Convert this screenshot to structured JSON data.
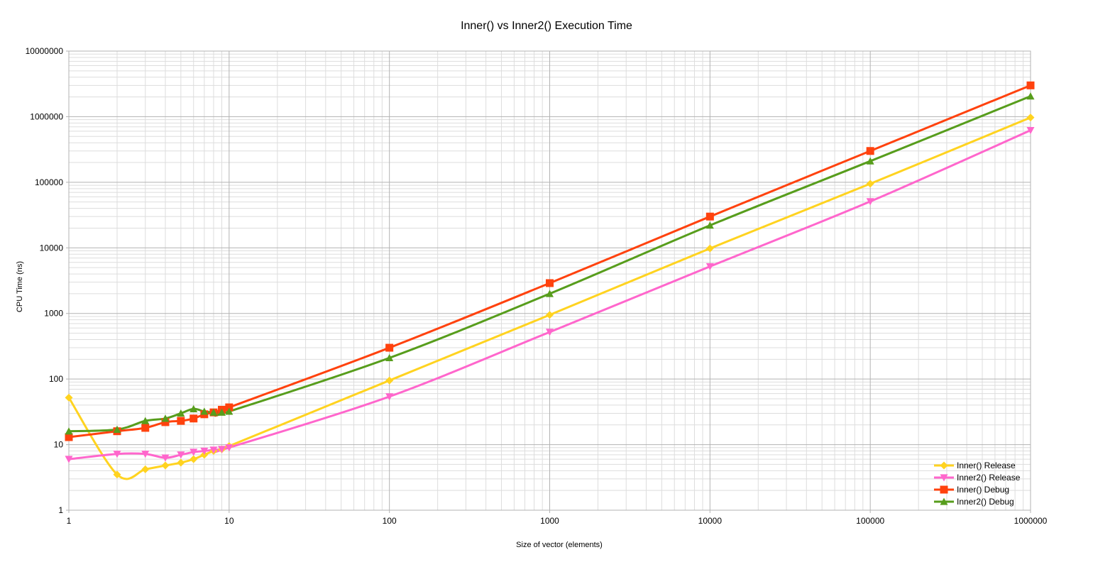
{
  "chart_data": {
    "type": "line",
    "title": "Inner() vs Inner2() Execution Time",
    "xlabel": "Size of vector (elements)",
    "ylabel": "CPU Time (ns)",
    "x_scale": "log",
    "y_scale": "log",
    "xlim": [
      1,
      1000000
    ],
    "ylim": [
      1,
      10000000
    ],
    "x_ticks": [
      "1",
      "10",
      "100",
      "1000",
      "10000",
      "100000",
      "1000000"
    ],
    "y_ticks": [
      "1",
      "10",
      "100",
      "1000",
      "10000",
      "100000",
      "1000000",
      "10000000"
    ],
    "grid": true,
    "legend_position": "bottom-right",
    "series": [
      {
        "name": "Inner() Release",
        "color": "#ffd320",
        "marker": "diamond",
        "points": [
          [
            1,
            52
          ],
          [
            2,
            3.5
          ],
          [
            3,
            4.2
          ],
          [
            4,
            4.8
          ],
          [
            5,
            5.3
          ],
          [
            6,
            6.0
          ],
          [
            7,
            7.0
          ],
          [
            8,
            8.0
          ],
          [
            9,
            8.5
          ],
          [
            10,
            9.5
          ],
          [
            100,
            95
          ],
          [
            1000,
            950
          ],
          [
            10000,
            9800
          ],
          [
            100000,
            95000
          ],
          [
            1000000,
            970000
          ]
        ]
      },
      {
        "name": "Inner2() Release",
        "color": "#ff66cc",
        "marker": "triangle-down",
        "points": [
          [
            1,
            6.0
          ],
          [
            2,
            7.2
          ],
          [
            3,
            7.2
          ],
          [
            4,
            6.3
          ],
          [
            5,
            7.0
          ],
          [
            6,
            7.7
          ],
          [
            7,
            8.0
          ],
          [
            8,
            8.3
          ],
          [
            9,
            8.5
          ],
          [
            10,
            9.0
          ],
          [
            100,
            54
          ],
          [
            1000,
            520
          ],
          [
            10000,
            5200
          ],
          [
            100000,
            51000
          ],
          [
            1000000,
            620000
          ]
        ]
      },
      {
        "name": "Inner() Debug",
        "color": "#ff420e",
        "marker": "square",
        "points": [
          [
            1,
            13
          ],
          [
            2,
            16
          ],
          [
            3,
            18
          ],
          [
            4,
            22
          ],
          [
            5,
            23
          ],
          [
            6,
            25
          ],
          [
            7,
            29
          ],
          [
            8,
            31
          ],
          [
            9,
            34
          ],
          [
            10,
            37
          ],
          [
            100,
            300
          ],
          [
            1000,
            2900
          ],
          [
            10000,
            30000
          ],
          [
            100000,
            300000
          ],
          [
            1000000,
            3000000
          ]
        ]
      },
      {
        "name": "Inner2() Debug",
        "color": "#579d1c",
        "marker": "triangle-up",
        "points": [
          [
            1,
            16
          ],
          [
            2,
            17
          ],
          [
            3,
            23
          ],
          [
            4,
            25
          ],
          [
            5,
            30
          ],
          [
            6,
            35
          ],
          [
            7,
            32
          ],
          [
            8,
            31
          ],
          [
            9,
            31
          ],
          [
            10,
            32
          ],
          [
            100,
            210
          ],
          [
            1000,
            2000
          ],
          [
            10000,
            22000
          ],
          [
            100000,
            210000
          ],
          [
            1000000,
            2050000
          ]
        ]
      }
    ]
  }
}
